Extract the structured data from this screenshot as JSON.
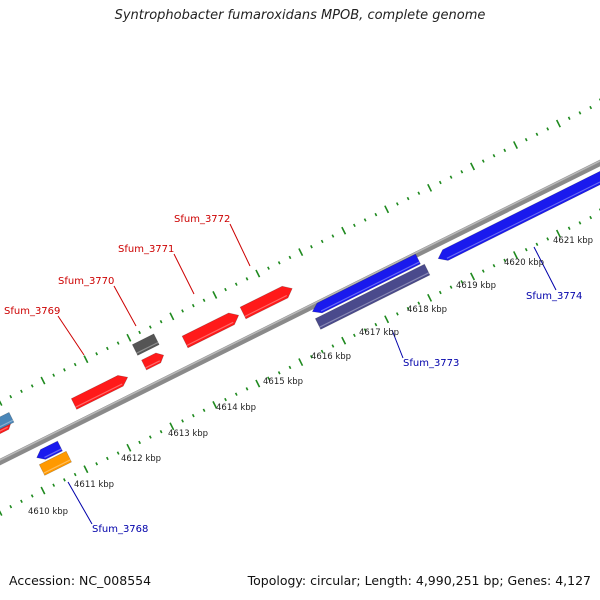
{
  "title": "Syntrophobacter fumaroxidans MPOB, complete genome",
  "footer": {
    "accession": "Accession: NC_008554",
    "summary": "Topology: circular; Length: 4,990,251 bp; Genes: 4,127"
  },
  "colors": {
    "forward_gene": "#ff1a1a",
    "reverse_gene": "#1a1aee",
    "gray_gene": "#555555",
    "orange_gene": "#ff9900",
    "lightblue_gene": "#4a86b8",
    "darkslate_gene": "#4a4a8c",
    "tick": "#1f8a1f",
    "label_forward": "#cc0000",
    "label_reverse": "#0000aa"
  },
  "ticks": [
    {
      "label": "4610 kbp"
    },
    {
      "label": "4611 kbp"
    },
    {
      "label": "4612 kbp"
    },
    {
      "label": "4613 kbp"
    },
    {
      "label": "4614 kbp"
    },
    {
      "label": "4615 kbp"
    },
    {
      "label": "4616 kbp"
    },
    {
      "label": "4617 kbp"
    },
    {
      "label": "4618 kbp"
    },
    {
      "label": "4619 kbp"
    },
    {
      "label": "4620 kbp"
    },
    {
      "label": "4621 kbp"
    }
  ],
  "gene_labels": [
    {
      "name": "Sfum_3769",
      "strand": "forward"
    },
    {
      "name": "Sfum_3770",
      "strand": "forward"
    },
    {
      "name": "Sfum_3771",
      "strand": "forward"
    },
    {
      "name": "Sfum_3772",
      "strand": "forward"
    },
    {
      "name": "Sfum_3768",
      "strand": "reverse"
    },
    {
      "name": "Sfum_3773",
      "strand": "reverse"
    },
    {
      "name": "Sfum_3774",
      "strand": "reverse"
    }
  ]
}
